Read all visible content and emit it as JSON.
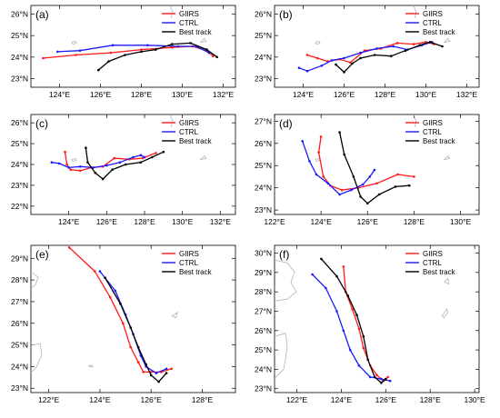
{
  "legend_labels": {
    "giirs": "GIIRS",
    "ctrl": "CTRL",
    "best": "Best track"
  },
  "colors": {
    "giirs": "#ff1a1a",
    "ctrl": "#1a1aff",
    "best": "#000000",
    "land": "#b4b4b4"
  },
  "chart_data": [
    {
      "type": "line",
      "panel_label": "(a)",
      "legend_placement": "top-right",
      "xlim": [
        122.6,
        132.6
      ],
      "ylim": [
        22.6,
        26.4
      ],
      "xticks": [
        "124°E",
        "126°E",
        "128°E",
        "130°E",
        "132°E"
      ],
      "yticks": [
        "23°N",
        "24°N",
        "25°N",
        "26°N"
      ],
      "series": [
        {
          "name": "GIIRS",
          "x": [
            123.2,
            124.8,
            126.5,
            128.0,
            129.5,
            130.5,
            131.2,
            131.5
          ],
          "y": [
            23.95,
            24.1,
            24.2,
            24.35,
            24.45,
            24.5,
            24.3,
            24.05
          ]
        },
        {
          "name": "CTRL",
          "x": [
            123.9,
            125.0,
            126.6,
            128.3,
            129.8,
            130.7,
            131.3
          ],
          "y": [
            24.25,
            24.3,
            24.55,
            24.55,
            24.5,
            24.5,
            24.2
          ]
        },
        {
          "name": "Best track",
          "x": [
            125.9,
            126.4,
            127.2,
            128.0,
            128.7,
            129.5,
            130.4,
            131.2,
            131.7
          ],
          "y": [
            23.4,
            23.8,
            24.1,
            24.25,
            24.35,
            24.6,
            24.65,
            24.35,
            24.0
          ]
        }
      ]
    },
    {
      "type": "line",
      "panel_label": "(b)",
      "legend_placement": "top-right",
      "xlim": [
        122.6,
        132.6
      ],
      "ylim": [
        22.6,
        26.4
      ],
      "xticks": [
        "124°E",
        "126°E",
        "128°E",
        "130°E",
        "132°E"
      ],
      "yticks": [
        "23°N",
        "24°N",
        "25°N",
        "26°N"
      ],
      "series": [
        {
          "name": "GIIRS",
          "x": [
            124.2,
            124.7,
            125.2,
            125.8,
            126.3,
            127.0,
            127.8,
            128.6,
            129.4,
            130.0,
            130.4
          ],
          "y": [
            24.1,
            23.95,
            23.8,
            23.9,
            23.75,
            24.3,
            24.4,
            24.65,
            24.6,
            24.7,
            24.6
          ]
        },
        {
          "name": "CTRL",
          "x": [
            123.8,
            124.2,
            124.9,
            125.4,
            126.0,
            126.8,
            127.6,
            128.4,
            129.1,
            129.8,
            130.3
          ],
          "y": [
            23.5,
            23.35,
            23.6,
            23.85,
            23.95,
            24.2,
            24.4,
            24.5,
            24.35,
            24.55,
            24.7
          ]
        },
        {
          "name": "Best track",
          "x": [
            125.6,
            126.0,
            126.4,
            126.8,
            127.5,
            128.3,
            129.0,
            129.7,
            130.2,
            130.8
          ],
          "y": [
            23.65,
            23.3,
            23.7,
            23.95,
            24.1,
            24.05,
            24.3,
            24.55,
            24.7,
            24.5
          ]
        }
      ]
    },
    {
      "type": "line",
      "panel_label": "(c)",
      "legend_placement": "top-right",
      "xlim": [
        122.0,
        132.8
      ],
      "ylim": [
        21.6,
        26.4
      ],
      "xticks": [
        "124°E",
        "126°E",
        "128°E",
        "130°E",
        "132°E"
      ],
      "yticks": [
        "22°N",
        "23°N",
        "24°N",
        "25°N",
        "26°N"
      ],
      "series": [
        {
          "name": "GIIRS",
          "x": [
            123.8,
            123.9,
            124.1,
            124.6,
            125.2,
            125.8,
            126.4,
            127.2,
            127.9,
            128.6
          ],
          "y": [
            24.6,
            24.0,
            23.75,
            23.7,
            23.85,
            23.9,
            24.3,
            24.25,
            24.3,
            24.55
          ]
        },
        {
          "name": "CTRL",
          "x": [
            123.1,
            123.5,
            124.0,
            124.6,
            125.3,
            126.0,
            126.7,
            127.4,
            127.8,
            128.0
          ],
          "y": [
            24.1,
            24.05,
            23.85,
            23.9,
            23.85,
            23.95,
            24.1,
            24.35,
            24.45,
            24.35
          ]
        },
        {
          "name": "Best track",
          "x": [
            124.9,
            125.0,
            125.4,
            125.8,
            126.3,
            127.0,
            127.8,
            128.4,
            129.0
          ],
          "y": [
            24.8,
            24.1,
            23.6,
            23.3,
            23.75,
            24.0,
            24.1,
            24.35,
            24.6
          ]
        }
      ]
    },
    {
      "type": "line",
      "panel_label": "(d)",
      "legend_placement": "top-right",
      "xlim": [
        122.0,
        130.8
      ],
      "ylim": [
        22.8,
        27.3
      ],
      "xticks": [
        "122°E",
        "124°E",
        "126°E",
        "128°E",
        "130°E"
      ],
      "yticks": [
        "23°N",
        "24°N",
        "25°N",
        "26°N",
        "27°N"
      ],
      "series": [
        {
          "name": "GIIRS",
          "x": [
            124.0,
            123.9,
            124.1,
            124.4,
            124.9,
            125.6,
            126.4,
            127.3,
            128.0
          ],
          "y": [
            26.3,
            25.6,
            24.5,
            24.1,
            23.9,
            24.0,
            24.2,
            24.6,
            24.5
          ]
        },
        {
          "name": "CTRL",
          "x": [
            123.2,
            123.5,
            123.8,
            124.3,
            124.8,
            125.3,
            125.8,
            126.1,
            126.3
          ],
          "y": [
            26.1,
            25.2,
            24.6,
            24.2,
            23.7,
            23.9,
            24.15,
            24.5,
            24.8
          ]
        },
        {
          "name": "Best track",
          "x": [
            124.8,
            125.0,
            125.4,
            125.7,
            126.0,
            126.5,
            127.2,
            127.8
          ],
          "y": [
            26.5,
            25.5,
            24.5,
            23.6,
            23.3,
            23.7,
            24.05,
            24.1
          ]
        }
      ]
    },
    {
      "type": "line",
      "panel_label": "(e)",
      "legend_placement": "top-right",
      "xlim": [
        121.3,
        129.3
      ],
      "ylim": [
        22.8,
        29.6
      ],
      "xticks": [
        "122°E",
        "124°E",
        "126°E",
        "128°E"
      ],
      "yticks": [
        "23°N",
        "24°N",
        "25°N",
        "26°N",
        "27°N",
        "28°N",
        "29°N"
      ],
      "series": [
        {
          "name": "GIIRS",
          "x": [
            122.8,
            123.8,
            124.4,
            124.9,
            125.2,
            125.5,
            125.7,
            126.0,
            126.4,
            126.8
          ],
          "y": [
            29.5,
            28.4,
            27.2,
            26.0,
            24.9,
            24.2,
            23.75,
            23.75,
            23.75,
            23.9
          ]
        },
        {
          "name": "CTRL",
          "x": [
            124.0,
            124.6,
            125.0,
            125.3,
            125.6,
            125.8,
            126.2,
            126.6
          ],
          "y": [
            28.4,
            27.5,
            26.4,
            25.5,
            24.5,
            24.0,
            23.7,
            23.9
          ]
        },
        {
          "name": "Best track",
          "x": [
            124.2,
            124.8,
            125.2,
            125.5,
            125.8,
            126.0,
            126.3,
            126.6
          ],
          "y": [
            28.1,
            26.9,
            25.8,
            24.9,
            24.1,
            23.6,
            23.3,
            23.7
          ]
        }
      ]
    },
    {
      "type": "line",
      "panel_label": "(f)",
      "legend_placement": "top-right",
      "xlim": [
        121.0,
        130.2
      ],
      "ylim": [
        22.8,
        30.4
      ],
      "xticks": [
        "122°E",
        "124°E",
        "126°E",
        "128°E",
        "130°E"
      ],
      "yticks": [
        "23°N",
        "24°N",
        "25°N",
        "26°N",
        "27°N",
        "28°N",
        "29°N",
        "30°N"
      ],
      "series": [
        {
          "name": "GIIRS",
          "x": [
            124.1,
            124.2,
            124.5,
            124.8,
            125.0,
            125.3,
            125.6,
            125.9,
            126.1
          ],
          "y": [
            29.3,
            28.0,
            27.1,
            26.1,
            25.1,
            24.2,
            23.7,
            23.4,
            23.6
          ]
        },
        {
          "name": "CTRL",
          "x": [
            122.7,
            123.3,
            123.8,
            124.1,
            124.4,
            124.8,
            125.3,
            125.8,
            126.2
          ],
          "y": [
            28.9,
            28.2,
            27.0,
            26.0,
            25.0,
            24.2,
            23.6,
            23.5,
            23.4
          ]
        },
        {
          "name": "Best track",
          "x": [
            123.1,
            123.8,
            124.3,
            124.7,
            125.0,
            125.2,
            125.5,
            125.8,
            126.0
          ],
          "y": [
            29.7,
            28.8,
            27.8,
            26.8,
            25.7,
            24.5,
            23.6,
            23.3,
            23.5
          ]
        }
      ]
    }
  ]
}
